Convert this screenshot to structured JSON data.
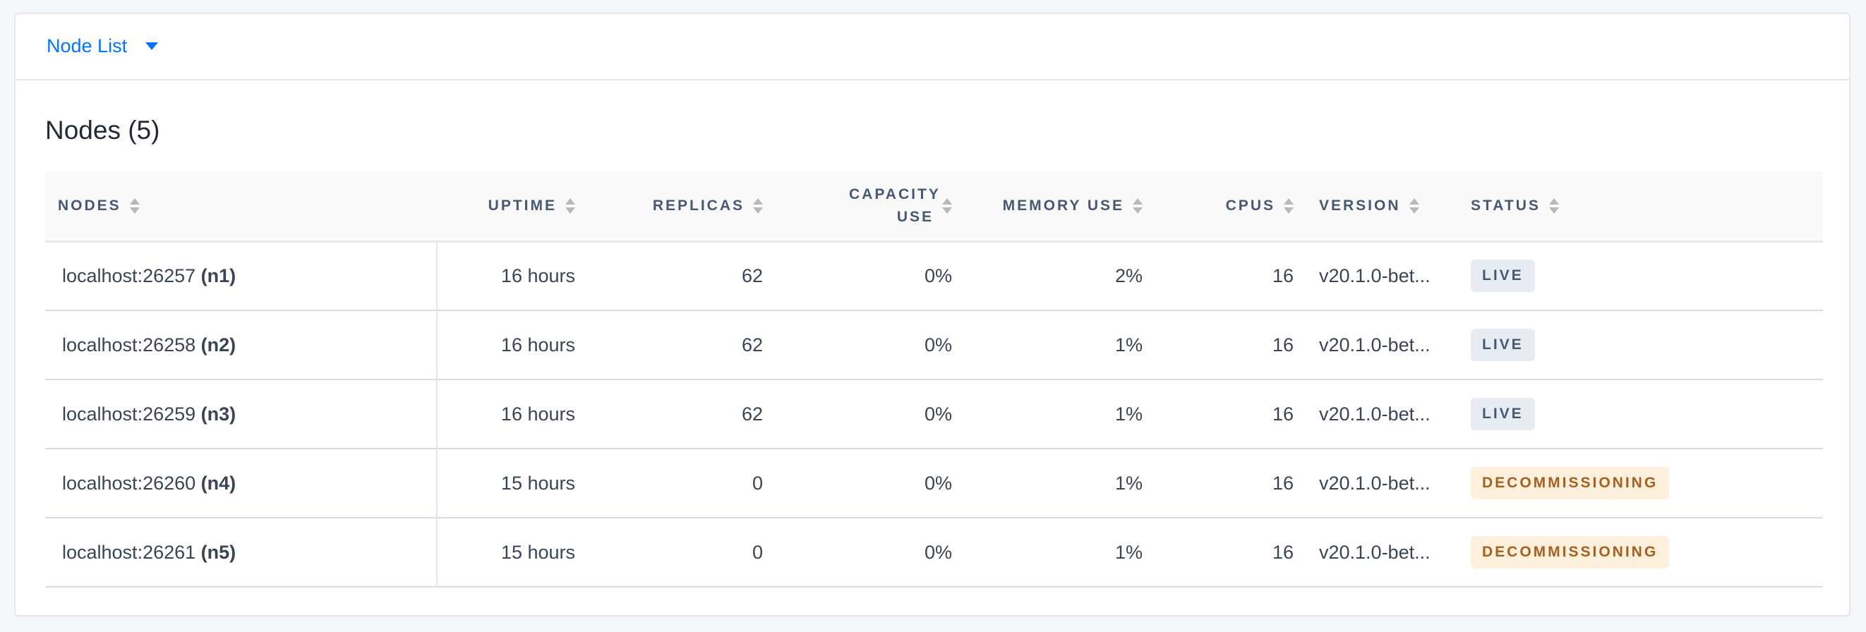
{
  "header": {
    "dropdown_label": "Node List"
  },
  "title": "Nodes (5)",
  "colors": {
    "accent": "#0075ff",
    "live_badge_bg": "#e7ecf3",
    "decommissioning_badge_bg": "#fcf0dc",
    "decommissioning_text": "#a5601f"
  },
  "columns": [
    {
      "label": "Nodes",
      "sortable": true
    },
    {
      "label": "Uptime",
      "sortable": true
    },
    {
      "label": "Replicas",
      "sortable": true
    },
    {
      "label": "Capacity Use",
      "sortable": true
    },
    {
      "label": "Memory Use",
      "sortable": true
    },
    {
      "label": "CPUs",
      "sortable": true
    },
    {
      "label": "Version",
      "sortable": true
    },
    {
      "label": "Status",
      "sortable": true
    }
  ],
  "rows": [
    {
      "address": "localhost:26257",
      "id": "(n1)",
      "uptime": "16 hours",
      "replicas": "62",
      "capacity": "0%",
      "memory": "2%",
      "cpus": "16",
      "version": "v20.1.0-bet...",
      "status": "LIVE",
      "status_key": "live"
    },
    {
      "address": "localhost:26258",
      "id": "(n2)",
      "uptime": "16 hours",
      "replicas": "62",
      "capacity": "0%",
      "memory": "1%",
      "cpus": "16",
      "version": "v20.1.0-bet...",
      "status": "LIVE",
      "status_key": "live"
    },
    {
      "address": "localhost:26259",
      "id": "(n3)",
      "uptime": "16 hours",
      "replicas": "62",
      "capacity": "0%",
      "memory": "1%",
      "cpus": "16",
      "version": "v20.1.0-bet...",
      "status": "LIVE",
      "status_key": "live"
    },
    {
      "address": "localhost:26260",
      "id": "(n4)",
      "uptime": "15 hours",
      "replicas": "0",
      "capacity": "0%",
      "memory": "1%",
      "cpus": "16",
      "version": "v20.1.0-bet...",
      "status": "DECOMMISSIONING",
      "status_key": "decommissioning"
    },
    {
      "address": "localhost:26261",
      "id": "(n5)",
      "uptime": "15 hours",
      "replicas": "0",
      "capacity": "0%",
      "memory": "1%",
      "cpus": "16",
      "version": "v20.1.0-bet...",
      "status": "DECOMMISSIONING",
      "status_key": "decommissioning"
    }
  ]
}
